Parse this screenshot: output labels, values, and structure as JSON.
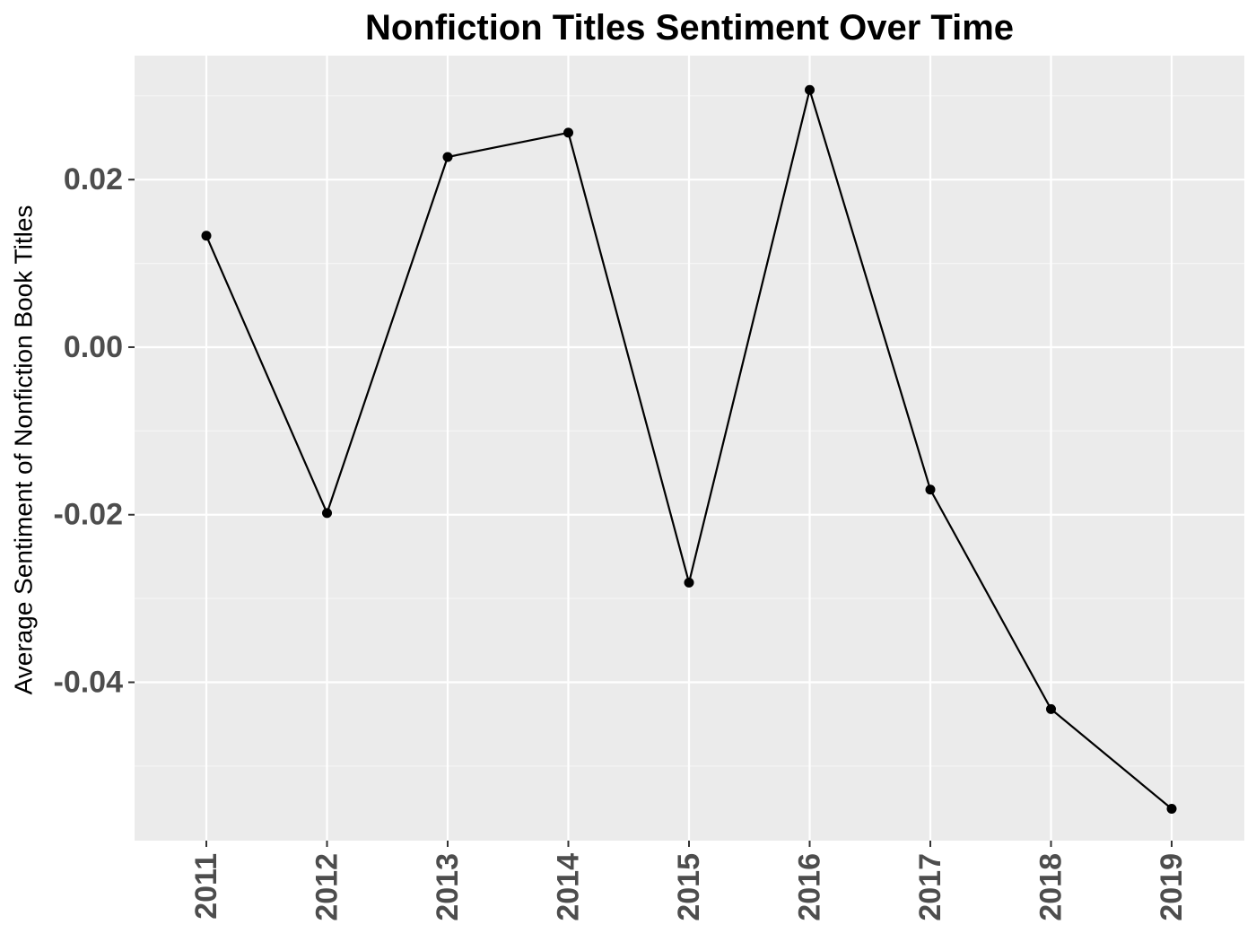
{
  "chart_data": {
    "type": "line",
    "title": "Nonfiction Titles Sentiment Over Time",
    "xlabel": "",
    "ylabel": "Average Sentiment of Nonfiction Book Titles",
    "categories": [
      "2011",
      "2012",
      "2013",
      "2014",
      "2015",
      "2016",
      "2017",
      "2018",
      "2019"
    ],
    "series": [
      {
        "values": [
          0.0133,
          -0.0198,
          0.0227,
          0.0256,
          -0.0281,
          0.0307,
          -0.017,
          -0.0432,
          -0.0551
        ]
      }
    ],
    "ylim": [
      -0.0589,
      0.0348
    ],
    "yticks": [
      0.02,
      0.0,
      -0.02,
      -0.04
    ],
    "ytick_labels": [
      "0.02",
      "0.00",
      "-0.02",
      "-0.04"
    ],
    "grid": true,
    "legend": "none",
    "colors": {
      "panel_background": "#ebebeb",
      "grid_major": "#ffffff",
      "grid_minor": "#f5f5f5",
      "line": "#000000",
      "point": "#000000",
      "tick_label": "#4d4d4d",
      "title": "#000000"
    }
  }
}
